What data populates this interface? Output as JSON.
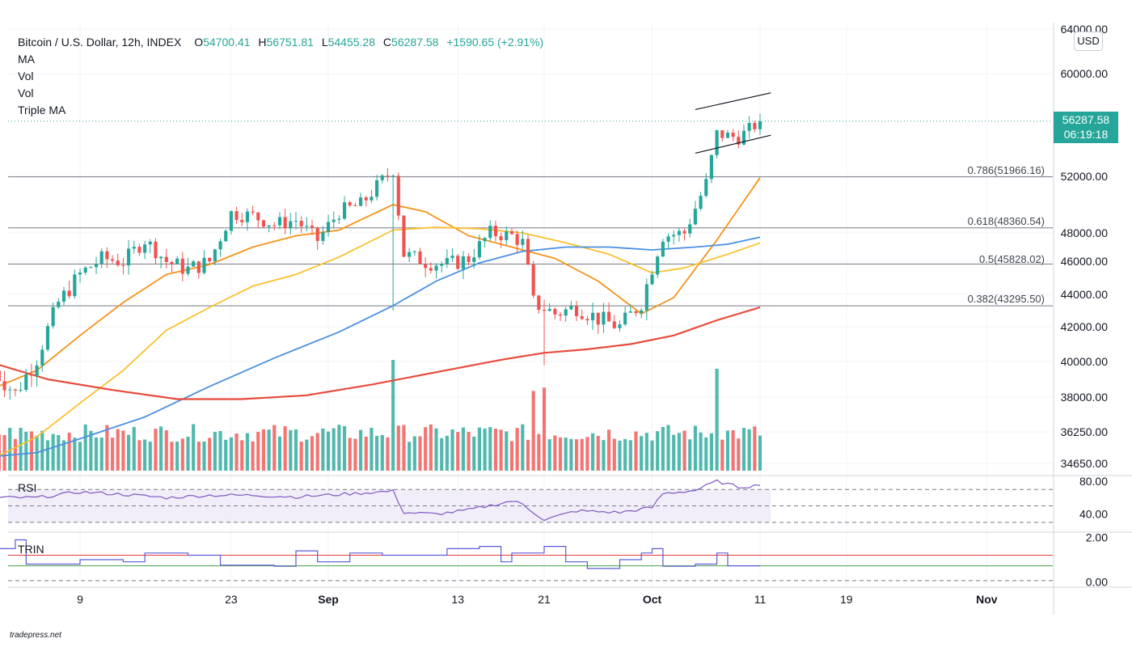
{
  "header": {
    "symbol": "Bitcoin / U.S. Dollar, 12h, INDEX",
    "open_label": "O",
    "open": "54700.41",
    "high_label": "H",
    "high": "56751.81",
    "low_label": "L",
    "low": "54455.28",
    "close_label": "C",
    "close": "56287.58",
    "change": "+1590.65 (+2.91%)",
    "indicators": [
      "MA",
      "Vol",
      "Vol",
      "Triple MA"
    ]
  },
  "currency": "USD",
  "last_price_tag": {
    "price": "56287.58",
    "countdown": "06:19:18"
  },
  "watermark": "tradepress.net",
  "colors": {
    "up": "#26a69a",
    "down": "#ef5350",
    "ma_orange": "#f7931a",
    "ma_yellow": "#fbc02d",
    "ma_blue": "#4a90e2",
    "ma_red": "#e74c3c",
    "rsi": "#7e57c2",
    "trin": "#5b5bd6"
  },
  "chart_data": [
    {
      "type": "candlestick",
      "title": "Bitcoin / U.S. Dollar, 12h, INDEX",
      "y_tick_labels": [
        "64000.00",
        "60000.00",
        "52000.00",
        "48000.00",
        "46000.00",
        "44000.00",
        "42000.00",
        "40000.00",
        "38000.00",
        "36250.00",
        "34650.00"
      ],
      "y_ticks": [
        64000,
        60000,
        52000,
        48000,
        46000,
        44000,
        42000,
        40000,
        38000,
        36250,
        34650
      ],
      "x_tick_labels": [
        "9",
        "23",
        "Sep",
        "13",
        "21",
        "Oct",
        "11",
        "19",
        "Nov"
      ],
      "x_ticks": [
        "2021-08-09",
        "2021-08-23",
        "2021-09-01",
        "2021-09-13",
        "2021-09-21",
        "2021-10-01",
        "2021-10-11",
        "2021-10-19",
        "2021-11-01"
      ],
      "x_range": [
        "2021-08-01",
        "2021-11-06"
      ],
      "candle_interval": "12h",
      "fib_levels": [
        {
          "ratio": "0.786",
          "value": 51966.16,
          "label": "0.786(51966.16)"
        },
        {
          "ratio": "0.618",
          "value": 48360.54,
          "label": "0.618(48360.54)"
        },
        {
          "ratio": "0.5",
          "value": 45828.02,
          "label": "0.5(45828.02)"
        },
        {
          "ratio": "0.382",
          "value": 43295.5,
          "label": "0.382(43295.50)"
        }
      ],
      "channel": {
        "upper": [
          [
            "2021-10-05",
            57200
          ],
          [
            "2021-10-12",
            58500
          ]
        ],
        "lower": [
          [
            "2021-10-05",
            53800
          ],
          [
            "2021-10-12",
            55200
          ]
        ]
      },
      "anchors": [
        [
          "2021-08-01",
          39500
        ],
        [
          "2021-08-03",
          38200
        ],
        [
          "2021-08-05",
          40200
        ],
        [
          "2021-08-07",
          43500
        ],
        [
          "2021-08-09",
          45200
        ],
        [
          "2021-08-11",
          46200
        ],
        [
          "2021-08-13",
          46000
        ],
        [
          "2021-08-15",
          47500
        ],
        [
          "2021-08-17",
          46000
        ],
        [
          "2021-08-19",
          45500
        ],
        [
          "2021-08-21",
          46000
        ],
        [
          "2021-08-23",
          49400
        ],
        [
          "2021-08-25",
          49200
        ],
        [
          "2021-08-27",
          48600
        ],
        [
          "2021-08-29",
          48900
        ],
        [
          "2021-08-31",
          47500
        ],
        [
          "2021-09-02",
          49500
        ],
        [
          "2021-09-04",
          50000
        ],
        [
          "2021-09-06",
          51700
        ],
        [
          "2021-09-07",
          52500
        ],
        [
          "2021-09-08",
          46500
        ],
        [
          "2021-09-10",
          46000
        ],
        [
          "2021-09-12",
          45800
        ],
        [
          "2021-09-14",
          46200
        ],
        [
          "2021-09-16",
          48000
        ],
        [
          "2021-09-18",
          47800
        ],
        [
          "2021-09-19",
          47300
        ],
        [
          "2021-09-20",
          43500
        ],
        [
          "2021-09-22",
          42800
        ],
        [
          "2021-09-24",
          43200
        ],
        [
          "2021-09-26",
          42500
        ],
        [
          "2021-09-28",
          42000
        ],
        [
          "2021-09-30",
          43500
        ],
        [
          "2021-10-02",
          47800
        ],
        [
          "2021-10-04",
          48000
        ],
        [
          "2021-10-06",
          51500
        ],
        [
          "2021-10-07",
          55300
        ],
        [
          "2021-10-09",
          55000
        ],
        [
          "2021-10-11",
          56287.58
        ]
      ],
      "ma_series": [
        {
          "values": [
            [
              "2021-08-01",
              38500
            ],
            [
              "2021-08-05",
              39500
            ],
            [
              "2021-08-09",
              41500
            ],
            [
              "2021-08-13",
              43500
            ],
            [
              "2021-08-17",
              45200
            ],
            [
              "2021-08-21",
              45800
            ],
            [
              "2021-08-25",
              47000
            ],
            [
              "2021-08-29",
              47800
            ],
            [
              "2021-09-02",
              48200
            ],
            [
              "2021-09-07",
              50000
            ],
            [
              "2021-09-10",
              49500
            ],
            [
              "2021-09-14",
              47800
            ],
            [
              "2021-09-18",
              47000
            ],
            [
              "2021-09-22",
              46200
            ],
            [
              "2021-09-26",
              44800
            ],
            [
              "2021-09-30",
              42800
            ],
            [
              "2021-10-03",
              43800
            ],
            [
              "2021-10-07",
              47500
            ],
            [
              "2021-10-11",
              51900
            ]
          ]
        },
        {
          "values": [
            [
              "2021-08-01",
              34900
            ],
            [
              "2021-08-05",
              36000
            ],
            [
              "2021-08-09",
              37700
            ],
            [
              "2021-08-13",
              39500
            ],
            [
              "2021-08-17",
              41800
            ],
            [
              "2021-08-21",
              43200
            ],
            [
              "2021-08-25",
              44500
            ],
            [
              "2021-08-29",
              45200
            ],
            [
              "2021-09-02",
              46300
            ],
            [
              "2021-09-07",
              48200
            ],
            [
              "2021-09-11",
              48400
            ],
            [
              "2021-09-15",
              48300
            ],
            [
              "2021-09-19",
              48000
            ],
            [
              "2021-09-23",
              47300
            ],
            [
              "2021-09-27",
              46500
            ],
            [
              "2021-10-01",
              45300
            ],
            [
              "2021-10-04",
              45600
            ],
            [
              "2021-10-08",
              46500
            ],
            [
              "2021-10-11",
              47300
            ]
          ]
        },
        {
          "values": [
            [
              "2021-08-01",
              35000
            ],
            [
              "2021-08-05",
              35200
            ],
            [
              "2021-08-09",
              35900
            ],
            [
              "2021-08-15",
              37000
            ],
            [
              "2021-08-21",
              38600
            ],
            [
              "2021-08-27",
              40200
            ],
            [
              "2021-09-02",
              41700
            ],
            [
              "2021-09-07",
              43300
            ],
            [
              "2021-09-11",
              44800
            ],
            [
              "2021-09-15",
              45900
            ],
            [
              "2021-09-19",
              46700
            ],
            [
              "2021-09-23",
              47000
            ],
            [
              "2021-09-27",
              47000
            ],
            [
              "2021-10-01",
              46800
            ],
            [
              "2021-10-05",
              47000
            ],
            [
              "2021-10-08",
              47200
            ],
            [
              "2021-10-11",
              47700
            ]
          ]
        },
        {
          "values": [
            [
              "2021-08-01",
              39900
            ],
            [
              "2021-08-06",
              39000
            ],
            [
              "2021-08-12",
              38400
            ],
            [
              "2021-08-18",
              37900
            ],
            [
              "2021-08-24",
              37900
            ],
            [
              "2021-08-30",
              38100
            ],
            [
              "2021-09-05",
              38700
            ],
            [
              "2021-09-11",
              39400
            ],
            [
              "2021-09-17",
              40100
            ],
            [
              "2021-09-21",
              40500
            ],
            [
              "2021-09-25",
              40700
            ],
            [
              "2021-09-29",
              41000
            ],
            [
              "2021-10-03",
              41500
            ],
            [
              "2021-10-07",
              42400
            ],
            [
              "2021-10-11",
              43200
            ]
          ]
        }
      ]
    },
    {
      "type": "bar",
      "title": "Vol",
      "note": "volume bars, relative scale 0-1",
      "spikes": [
        [
          "2021-09-07",
          1.0
        ],
        [
          "2021-09-20",
          0.72
        ],
        [
          "2021-09-21",
          0.75
        ],
        [
          "2021-10-07",
          0.92
        ]
      ]
    },
    {
      "type": "line",
      "title": "RSI",
      "y_tick_labels": [
        "80.00",
        "40.00"
      ],
      "y_ticks": [
        80,
        40
      ],
      "ylim": [
        20,
        85
      ],
      "bands": [
        70,
        50,
        30
      ],
      "values": [
        [
          "2021-08-01",
          60
        ],
        [
          "2021-08-05",
          60
        ],
        [
          "2021-08-09",
          67
        ],
        [
          "2021-08-13",
          64
        ],
        [
          "2021-08-17",
          60
        ],
        [
          "2021-08-21",
          63
        ],
        [
          "2021-08-25",
          63
        ],
        [
          "2021-08-29",
          61
        ],
        [
          "2021-09-02",
          64
        ],
        [
          "2021-09-07",
          68
        ],
        [
          "2021-09-08",
          42
        ],
        [
          "2021-09-11",
          40
        ],
        [
          "2021-09-14",
          45
        ],
        [
          "2021-09-18",
          56
        ],
        [
          "2021-09-19",
          52
        ],
        [
          "2021-09-21",
          33
        ],
        [
          "2021-09-24",
          44
        ],
        [
          "2021-09-28",
          42
        ],
        [
          "2021-10-01",
          48
        ],
        [
          "2021-10-02",
          65
        ],
        [
          "2021-10-05",
          69
        ],
        [
          "2021-10-07",
          80
        ],
        [
          "2021-10-09",
          73
        ],
        [
          "2021-10-11",
          75
        ]
      ]
    },
    {
      "type": "line",
      "title": "TRIN",
      "y_tick_labels": [
        "2.00",
        "0.00"
      ],
      "y_ticks": [
        2,
        0
      ],
      "ylim": [
        -0.1,
        2.1
      ],
      "reference_lines": [
        {
          "value": 1.2,
          "color": "#e53935"
        },
        {
          "value": 0.72,
          "color": "#43a047"
        },
        {
          "value": 0.05,
          "color": "#787b86"
        }
      ],
      "values": [
        [
          "2021-08-01",
          1.5
        ],
        [
          "2021-08-03",
          1.9
        ],
        [
          "2021-08-04",
          0.8
        ],
        [
          "2021-08-09",
          1.0
        ],
        [
          "2021-08-13",
          0.9
        ],
        [
          "2021-08-15",
          1.3
        ],
        [
          "2021-08-19",
          1.2
        ],
        [
          "2021-08-22",
          0.75
        ],
        [
          "2021-08-27",
          0.7
        ],
        [
          "2021-08-29",
          1.4
        ],
        [
          "2021-08-31",
          0.9
        ],
        [
          "2021-09-03",
          1.3
        ],
        [
          "2021-09-06",
          1.2
        ],
        [
          "2021-09-10",
          1.2
        ],
        [
          "2021-09-12",
          1.5
        ],
        [
          "2021-09-15",
          1.6
        ],
        [
          "2021-09-17",
          0.9
        ],
        [
          "2021-09-18",
          1.3
        ],
        [
          "2021-09-21",
          1.6
        ],
        [
          "2021-09-23",
          0.9
        ],
        [
          "2021-09-25",
          0.6
        ],
        [
          "2021-09-28",
          1.0
        ],
        [
          "2021-09-30",
          1.3
        ],
        [
          "2021-10-01",
          1.5
        ],
        [
          "2021-10-02",
          0.7
        ],
        [
          "2021-10-05",
          0.8
        ],
        [
          "2021-10-07",
          1.3
        ],
        [
          "2021-10-08",
          0.72
        ],
        [
          "2021-10-11",
          0.72
        ]
      ]
    }
  ]
}
